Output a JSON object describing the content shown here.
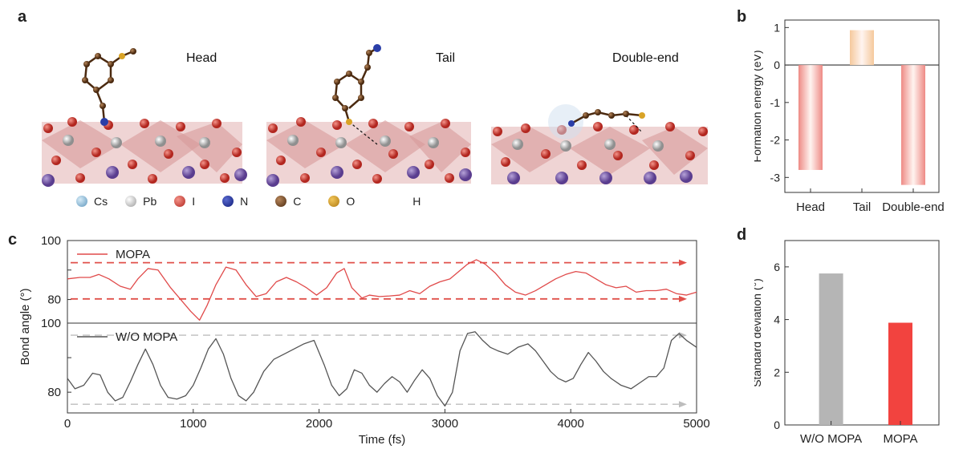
{
  "panels": {
    "a": "a",
    "b": "b",
    "c": "c",
    "d": "d"
  },
  "structure_labels": [
    "Head",
    "Tail",
    "Double-end"
  ],
  "atom_legend": [
    {
      "symbol": "Cs",
      "color": "#7fb4d6"
    },
    {
      "symbol": "Pb",
      "color": "#c9c9c9"
    },
    {
      "symbol": "I",
      "color": "#c8322b"
    },
    {
      "symbol": "N",
      "color": "#1a2e9a"
    },
    {
      "symbol": "C",
      "color": "#6b3f1e"
    },
    {
      "symbol": "O",
      "color": "#c8921f"
    },
    {
      "symbol": "H",
      "color": ""
    }
  ],
  "colors": {
    "red": "#e04a4a",
    "gray": "#555555",
    "axis": "#333333"
  },
  "chart_data": [
    {
      "id": "b",
      "type": "bar",
      "categories": [
        "Head",
        "Tail",
        "Double-end"
      ],
      "values": [
        -2.8,
        0.93,
        -3.2
      ],
      "ylabel": "Formation energy (eV)",
      "ylim": [
        -3.4,
        1.2
      ],
      "yticks": [
        1,
        0,
        -1,
        -2,
        -3
      ],
      "bar_colors": [
        "#ee8a85",
        "#f5c99c",
        "#ee8a85"
      ]
    },
    {
      "id": "c",
      "type": "line",
      "xlabel": "Time (fs)",
      "ylabel": "Bond angle (°)",
      "xlim": [
        0,
        5000
      ],
      "xticks": [
        0,
        1000,
        2000,
        3000,
        4000,
        5000
      ],
      "series": [
        {
          "name": "MOPA",
          "ylim": [
            72,
            100
          ],
          "yticks": [
            100,
            90,
            80
          ],
          "ytick_labels": [
            "100",
            "",
            "80"
          ],
          "reference_lines": [
            92.5,
            80.2
          ],
          "x": [
            0,
            100,
            180,
            250,
            330,
            420,
            500,
            560,
            640,
            720,
            820,
            900,
            980,
            1050,
            1110,
            1180,
            1260,
            1340,
            1420,
            1500,
            1580,
            1660,
            1740,
            1820,
            1900,
            1980,
            2060,
            2140,
            2200,
            2260,
            2340,
            2400,
            2480,
            2560,
            2640,
            2720,
            2800,
            2880,
            2960,
            3040,
            3110,
            3180,
            3250,
            3320,
            3400,
            3480,
            3560,
            3640,
            3720,
            3800,
            3880,
            3960,
            4040,
            4120,
            4200,
            4280,
            4360,
            4440,
            4520,
            4600,
            4680,
            4760,
            4840,
            4920,
            5000
          ],
          "y": [
            87,
            87.5,
            87.5,
            88.5,
            87,
            84.5,
            83.5,
            87,
            90.5,
            90,
            84,
            80,
            76,
            73,
            78,
            85,
            91,
            90,
            85,
            81,
            82,
            86,
            87.5,
            86,
            84,
            81.5,
            84,
            89,
            90.5,
            84,
            80.5,
            81.5,
            81,
            81.2,
            81.5,
            83,
            82,
            84.5,
            86,
            87,
            89.5,
            92,
            93.5,
            92,
            89,
            85,
            82.5,
            81.5,
            83,
            85,
            87,
            88.5,
            89.5,
            89,
            87,
            85,
            84,
            84.5,
            82.5,
            83,
            83,
            83.5,
            82,
            81.5,
            82.5
          ]
        },
        {
          "name": "W/O MOPA",
          "ylim": [
            74,
            100
          ],
          "yticks": [
            100,
            90,
            80
          ],
          "ytick_labels": [
            "100",
            "",
            "80"
          ],
          "reference_lines": [
            96.5,
            76.5
          ],
          "x": [
            0,
            60,
            130,
            200,
            260,
            320,
            380,
            440,
            500,
            560,
            620,
            680,
            740,
            800,
            870,
            940,
            1000,
            1060,
            1120,
            1180,
            1240,
            1300,
            1360,
            1420,
            1480,
            1560,
            1640,
            1720,
            1800,
            1880,
            1960,
            2040,
            2100,
            2160,
            2220,
            2280,
            2340,
            2400,
            2460,
            2520,
            2580,
            2640,
            2700,
            2760,
            2820,
            2880,
            2940,
            3000,
            3060,
            3120,
            3180,
            3240,
            3300,
            3360,
            3420,
            3500,
            3580,
            3660,
            3720,
            3780,
            3840,
            3900,
            3960,
            4020,
            4080,
            4140,
            4200,
            4260,
            4320,
            4400,
            4480,
            4560,
            4620,
            4680,
            4740,
            4800,
            4860,
            4920,
            5000
          ],
          "y": [
            84,
            81,
            82,
            85.5,
            85,
            80,
            77.5,
            78.5,
            83,
            88,
            92.5,
            88,
            82,
            78.5,
            78,
            79,
            82,
            87,
            92.5,
            95.5,
            91,
            84,
            79,
            77.5,
            80,
            86,
            89.5,
            91,
            92.5,
            94,
            95,
            88,
            82,
            79,
            81,
            86.5,
            85.5,
            82,
            80,
            82.5,
            84.5,
            83,
            80,
            83.5,
            86.5,
            84,
            79,
            76,
            80,
            92,
            97,
            97.5,
            95,
            93,
            92,
            91,
            93,
            94,
            92,
            89,
            86,
            84,
            83,
            84,
            88,
            91.5,
            89,
            86,
            84,
            82,
            81,
            83,
            84.5,
            84.5,
            87,
            95,
            97,
            95,
            93
          ]
        }
      ]
    },
    {
      "id": "d",
      "type": "bar",
      "categories": [
        "W/O MOPA",
        "MOPA"
      ],
      "values": [
        5.75,
        3.88
      ],
      "ylabel": "Standard deviation (°)",
      "ylim": [
        0,
        7
      ],
      "yticks": [
        0,
        2,
        4,
        6
      ],
      "bar_colors": [
        "#b5b5b5",
        "#f2433f"
      ]
    }
  ]
}
